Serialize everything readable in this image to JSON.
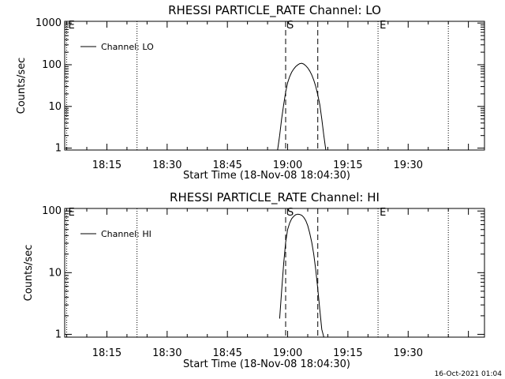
{
  "chart_data": [
    {
      "type": "line",
      "title": "RHESSI PARTICLE_RATE Channel: LO",
      "xlabel": "Start Time (18-Nov-08 18:04:30)",
      "ylabel": "Counts/sec",
      "yscale": "log",
      "ylim": [
        0.9,
        1100
      ],
      "xlim": [
        "18:04:30",
        "19:49:00"
      ],
      "x_ticks": [
        "18:15",
        "18:30",
        "18:45",
        "19:00",
        "19:15",
        "19:30"
      ],
      "y_ticks": [
        "1",
        "10",
        "100",
        "1000"
      ],
      "legend": {
        "label": "Channel: LO",
        "position": "top-left"
      },
      "markers": [
        {
          "label": "E",
          "time": "18:05:00",
          "style": "dotted"
        },
        {
          "label": "",
          "time": "18:22:30",
          "style": "dotted"
        },
        {
          "label": "S",
          "time": "18:59:30",
          "style": "dashed"
        },
        {
          "label": "",
          "time": "19:07:30",
          "style": "dashed"
        },
        {
          "label": "E",
          "time": "19:22:30",
          "style": "dotted"
        },
        {
          "label": "",
          "time": "19:40:00",
          "style": "dotted"
        }
      ],
      "series": [
        {
          "name": "Channel: LO",
          "x": [
            "18:57:30",
            "18:58:00",
            "18:58:30",
            "18:59:00",
            "18:59:30",
            "19:00:00",
            "19:00:30",
            "19:01:00",
            "19:01:30",
            "19:02:00",
            "19:02:30",
            "19:03:00",
            "19:03:30",
            "19:04:00",
            "19:04:30",
            "19:05:00",
            "19:05:30",
            "19:06:00",
            "19:06:30",
            "19:07:00",
            "19:07:30",
            "19:08:00",
            "19:08:30",
            "19:09:00",
            "19:09:30"
          ],
          "y": [
            0.9,
            2,
            5,
            11,
            22,
            37,
            52,
            66,
            79,
            90,
            99,
            106,
            108,
            104,
            95,
            84,
            71,
            57,
            43,
            30,
            19,
            11,
            5,
            2,
            0.9
          ]
        }
      ]
    },
    {
      "type": "line",
      "title": "RHESSI PARTICLE_RATE Channel: HI",
      "xlabel": "Start Time (18-Nov-08 18:04:30)",
      "ylabel": "Counts/sec",
      "yscale": "log",
      "ylim": [
        0.9,
        110
      ],
      "xlim": [
        "18:04:30",
        "19:49:00"
      ],
      "x_ticks": [
        "18:15",
        "18:30",
        "18:45",
        "19:00",
        "19:15",
        "19:30"
      ],
      "y_ticks": [
        "1",
        "10",
        "100"
      ],
      "legend": {
        "label": "Channel: HI",
        "position": "top-left"
      },
      "markers": [
        {
          "label": "E",
          "time": "18:05:00",
          "style": "dotted"
        },
        {
          "label": "",
          "time": "18:22:30",
          "style": "dotted"
        },
        {
          "label": "S",
          "time": "18:59:30",
          "style": "dashed"
        },
        {
          "label": "",
          "time": "19:07:30",
          "style": "dashed"
        },
        {
          "label": "E",
          "time": "19:22:30",
          "style": "dotted"
        },
        {
          "label": "",
          "time": "19:40:00",
          "style": "dotted"
        }
      ],
      "series": [
        {
          "name": "Channel: HI",
          "x": [
            "18:58:00",
            "18:58:30",
            "18:59:00",
            "18:59:30",
            "19:00:00",
            "19:00:30",
            "19:01:00",
            "19:01:30",
            "19:02:00",
            "19:02:30",
            "19:03:00",
            "19:03:30",
            "19:04:00",
            "19:04:30",
            "19:05:00",
            "19:05:30",
            "19:06:00",
            "19:06:30",
            "19:07:00",
            "19:07:30",
            "19:08:00",
            "19:08:30",
            "19:09:00"
          ],
          "y": [
            1.8,
            5,
            14,
            31,
            50,
            64,
            75,
            82,
            87,
            89,
            88,
            85,
            79,
            70,
            58,
            44,
            31,
            20,
            11,
            5.5,
            2.5,
            1.2,
            0.9
          ]
        }
      ]
    }
  ],
  "timestamp": "16-Oct-2021 01:04"
}
